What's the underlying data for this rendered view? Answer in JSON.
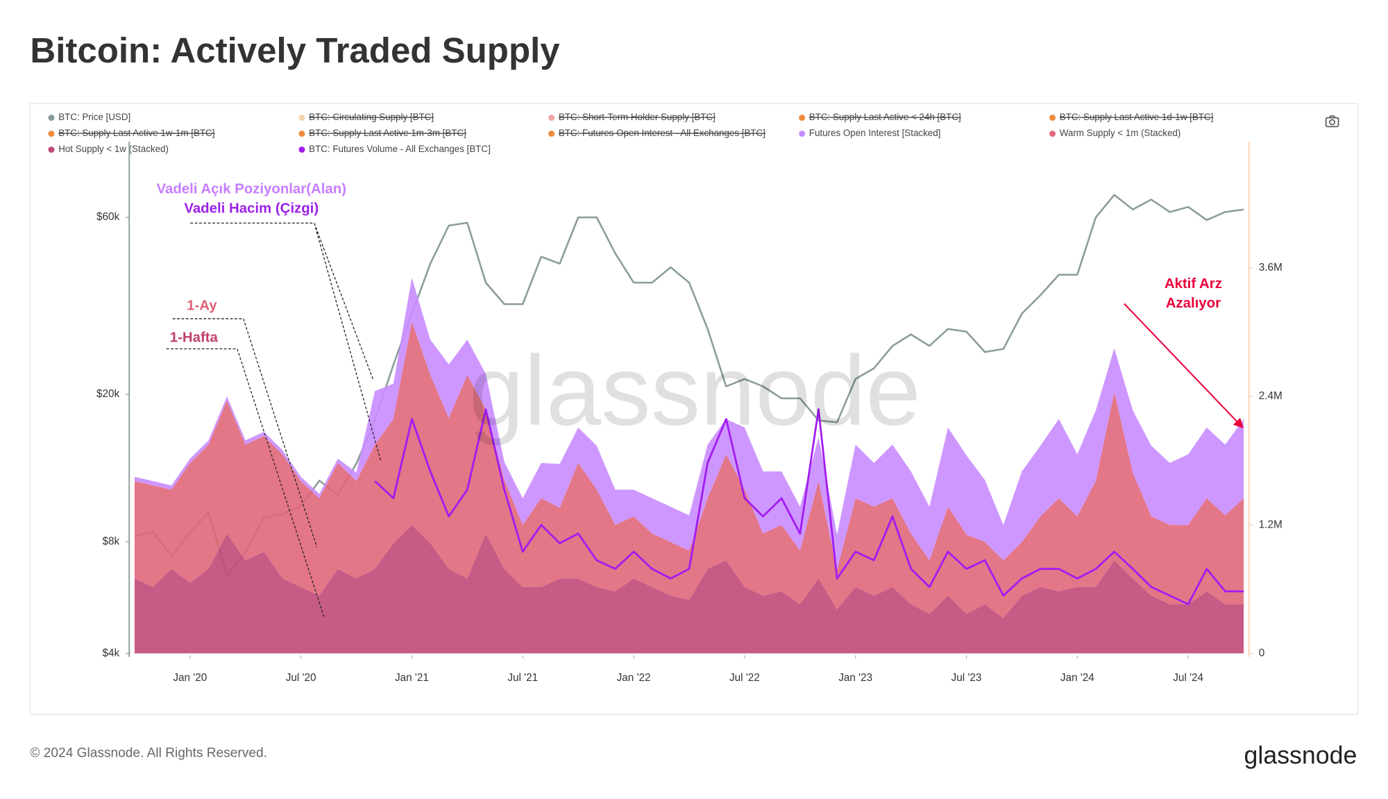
{
  "title": "Bitcoin: Actively Traded Supply",
  "footer": {
    "copyright": "© 2024 Glassnode. All Rights Reserved.",
    "logo": "glassnode"
  },
  "chart_data": {
    "type": "stacked-area-line",
    "watermark": "glassnode",
    "x": [
      "2019-10",
      "2019-11",
      "2019-12",
      "2020-01",
      "2020-02",
      "2020-03",
      "2020-04",
      "2020-05",
      "2020-06",
      "2020-07",
      "2020-08",
      "2020-09",
      "2020-10",
      "2020-11",
      "2020-12",
      "2021-01",
      "2021-02",
      "2021-03",
      "2021-04",
      "2021-05",
      "2021-06",
      "2021-07",
      "2021-08",
      "2021-09",
      "2021-10",
      "2021-11",
      "2021-12",
      "2022-01",
      "2022-02",
      "2022-03",
      "2022-04",
      "2022-05",
      "2022-06",
      "2022-07",
      "2022-08",
      "2022-09",
      "2022-10",
      "2022-11",
      "2022-12",
      "2023-01",
      "2023-02",
      "2023-03",
      "2023-04",
      "2023-05",
      "2023-06",
      "2023-07",
      "2023-08",
      "2023-09",
      "2023-10",
      "2023-11",
      "2023-12",
      "2024-01",
      "2024-02",
      "2024-03",
      "2024-04",
      "2024-05",
      "2024-06",
      "2024-07",
      "2024-08",
      "2024-09",
      "2024-10"
    ],
    "xlim": [
      "2019-10",
      "2024-10"
    ],
    "xticks": [
      {
        "value": "2020-01",
        "label": "Jan '20"
      },
      {
        "value": "2020-07",
        "label": "Jul '20"
      },
      {
        "value": "2021-01",
        "label": "Jan '21"
      },
      {
        "value": "2021-07",
        "label": "Jul '21"
      },
      {
        "value": "2022-01",
        "label": "Jan '22"
      },
      {
        "value": "2022-07",
        "label": "Jul '22"
      },
      {
        "value": "2023-01",
        "label": "Jan '23"
      },
      {
        "value": "2023-07",
        "label": "Jul '23"
      },
      {
        "value": "2024-01",
        "label": "Jan '24"
      },
      {
        "value": "2024-07",
        "label": "Jul '24"
      }
    ],
    "ylim": [
      4000,
      96000
    ],
    "log_y": true,
    "yticks": [
      {
        "value": 4000,
        "label": "$4k"
      },
      {
        "value": 8000,
        "label": "$8k"
      },
      {
        "value": 20000,
        "label": "$20k"
      },
      {
        "value": 60000,
        "label": "$60k"
      }
    ],
    "y2lim": [
      0,
      4780000
    ],
    "y2ticks": [
      0,
      {
        "value": 1200000,
        "label": "1.2M"
      },
      {
        "value": 2400000,
        "label": "2.4M"
      },
      {
        "value": 3600000,
        "label": "3.6M"
      }
    ],
    "grid": false,
    "series": [
      {
        "name": "BTC: Price [USD]",
        "color": "#8a9b9b",
        "kind": "line",
        "axis": "y",
        "values": [
          8300,
          8500,
          7300,
          8500,
          9600,
          6500,
          7500,
          9300,
          9500,
          10000,
          11700,
          10700,
          13000,
          17000,
          24000,
          33000,
          45000,
          57000,
          58000,
          40000,
          35000,
          35000,
          47000,
          45000,
          60000,
          60000,
          48000,
          40000,
          40000,
          44000,
          40000,
          30000,
          21000,
          22000,
          21000,
          19500,
          19500,
          17000,
          16800,
          22000,
          23500,
          27000,
          29000,
          27000,
          30000,
          29500,
          26000,
          26500,
          33000,
          37000,
          42000,
          42000,
          60000,
          69000,
          63000,
          67000,
          62000,
          64000,
          59000,
          62000,
          63000
        ]
      },
      {
        "name": "BTC: Circulating Supply [BTC]",
        "color": "#f6d3ad",
        "hidden": true
      },
      {
        "name": "BTC: Short-Term Holder Supply [BTC]",
        "color": "#f1a3a3",
        "hidden": true
      },
      {
        "name": "BTC: Supply Last Active < 24h [BTC]",
        "color": "#f08a3c",
        "hidden": true
      },
      {
        "name": "BTC: Supply Last Active 1d-1w [BTC]",
        "color": "#f08a3c",
        "hidden": true
      },
      {
        "name": "BTC: Supply Last Active 1w-1m [BTC]",
        "color": "#f08a3c",
        "hidden": true
      },
      {
        "name": "BTC: Supply Last Active 1m-3m [BTC]",
        "color": "#f08a3c",
        "hidden": true
      },
      {
        "name": "BTC: Futures Open Interest - All Exchanges [BTC]",
        "color": "#f08a3c",
        "hidden": true
      },
      {
        "name": "Futures Open Interest [Stacked]",
        "color": "#c98cff",
        "kind": "area",
        "stacked": true,
        "axis": "y2",
        "values": [
          40000,
          40000,
          40000,
          40000,
          40000,
          40000,
          40000,
          40000,
          40000,
          40000,
          40000,
          40000,
          80000,
          500000,
          330000,
          410000,
          330000,
          500000,
          330000,
          330000,
          170000,
          250000,
          330000,
          410000,
          330000,
          410000,
          330000,
          250000,
          330000,
          330000,
          330000,
          500000,
          330000,
          580000,
          580000,
          500000,
          410000,
          410000,
          330000,
          500000,
          410000,
          500000,
          580000,
          500000,
          740000,
          740000,
          580000,
          330000,
          660000,
          660000,
          740000,
          580000,
          660000,
          410000,
          580000,
          660000,
          580000,
          660000,
          660000,
          660000,
          740000
        ]
      },
      {
        "name": "Warm Supply < 1m (Stacked)",
        "color": "#e0677a",
        "kind": "area",
        "stacked": true,
        "axis": "y2",
        "values": [
          910000,
          950000,
          740000,
          1120000,
          1160000,
          1240000,
          1080000,
          1080000,
          1160000,
          990000,
          910000,
          990000,
          910000,
          1160000,
          1160000,
          1900000,
          1570000,
          1410000,
          1900000,
          1160000,
          830000,
          580000,
          830000,
          660000,
          1080000,
          910000,
          620000,
          580000,
          500000,
          500000,
          460000,
          660000,
          990000,
          910000,
          580000,
          620000,
          500000,
          910000,
          370000,
          830000,
          830000,
          830000,
          660000,
          500000,
          830000,
          740000,
          580000,
          540000,
          500000,
          660000,
          870000,
          660000,
          990000,
          1570000,
          990000,
          740000,
          740000,
          740000,
          870000,
          830000,
          990000
        ]
      },
      {
        "name": "Hot Supply < 1w (Stacked)",
        "color": "#c04a78",
        "kind": "area",
        "stacked": true,
        "axis": "y2",
        "values": [
          700000,
          620000,
          790000,
          660000,
          790000,
          1120000,
          870000,
          950000,
          700000,
          620000,
          540000,
          790000,
          700000,
          790000,
          1030000,
          1200000,
          1030000,
          790000,
          700000,
          1120000,
          790000,
          620000,
          620000,
          700000,
          700000,
          620000,
          580000,
          700000,
          620000,
          540000,
          500000,
          790000,
          870000,
          620000,
          540000,
          580000,
          460000,
          700000,
          410000,
          620000,
          540000,
          620000,
          460000,
          370000,
          540000,
          370000,
          460000,
          330000,
          540000,
          620000,
          580000,
          620000,
          620000,
          870000,
          700000,
          540000,
          460000,
          460000,
          580000,
          460000,
          460000
        ]
      },
      {
        "name": "BTC: Futures Volume - All Exchanges [BTC]",
        "color": "#a21cf0",
        "kind": "line",
        "axis": "y2",
        "values": [
          null,
          null,
          null,
          null,
          null,
          null,
          null,
          null,
          null,
          null,
          null,
          null,
          null,
          1610000,
          1450000,
          2190000,
          1700000,
          1280000,
          1530000,
          2280000,
          1530000,
          950000,
          1200000,
          1030000,
          1120000,
          870000,
          790000,
          950000,
          790000,
          700000,
          790000,
          1780000,
          2190000,
          1450000,
          1280000,
          1450000,
          1120000,
          2280000,
          700000,
          950000,
          870000,
          1280000,
          790000,
          620000,
          950000,
          790000,
          870000,
          540000,
          700000,
          790000,
          790000,
          700000,
          790000,
          950000,
          790000,
          620000,
          540000,
          460000,
          790000,
          580000,
          580000
        ]
      }
    ],
    "annotations": {
      "futures_area": "Vadeli Açık Poziyonlar(Alan)",
      "futures_line": "Vadeli Hacim (Çizgi)",
      "one_month": "1-Ay",
      "one_week": "1-Hafta",
      "active_supply": [
        "Aktif Arz",
        "Azalıyor"
      ]
    }
  }
}
